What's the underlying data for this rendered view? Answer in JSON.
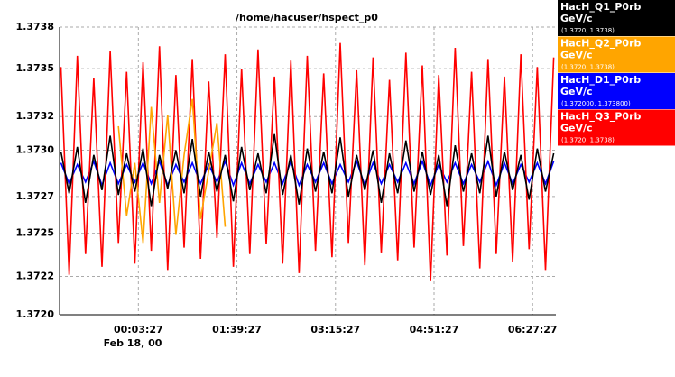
{
  "chart_data": {
    "type": "line",
    "title": "/home/hacuser/hspect_p0",
    "x_date_label": "Feb 18, 00",
    "x": [
      -72,
      -64,
      -56,
      -48,
      -40,
      -32,
      -24,
      -16,
      -8,
      0,
      8,
      16,
      24,
      32,
      40,
      48,
      56,
      64,
      72,
      80,
      88,
      96,
      104,
      112,
      120,
      128,
      136,
      144,
      152,
      160,
      168,
      176,
      184,
      192,
      200,
      208,
      216,
      224,
      232,
      240,
      248,
      256,
      264,
      272,
      280,
      288,
      296,
      304,
      312,
      320,
      328,
      336,
      344,
      352,
      360,
      368,
      376,
      384,
      392,
      400,
      408
    ],
    "xlim": [
      -73.3,
      410.1
    ],
    "xticks": [
      {
        "value": 3.45,
        "label": "00:03:27"
      },
      {
        "value": 99.45,
        "label": "01:39:27"
      },
      {
        "value": 195.45,
        "label": "03:15:27"
      },
      {
        "value": 291.45,
        "label": "04:51:27"
      },
      {
        "value": 387.45,
        "label": "06:27:27"
      }
    ],
    "ylim": [
      1.372,
      1.3738
    ],
    "yticks": [
      {
        "value": 1.372,
        "label": "1.3720"
      },
      {
        "value": 1.37224,
        "label": "1.3722"
      },
      {
        "value": 1.37251,
        "label": "1.3725"
      },
      {
        "value": 1.37274,
        "label": "1.3727"
      },
      {
        "value": 1.37303,
        "label": "1.3730"
      },
      {
        "value": 1.37324,
        "label": "1.3732"
      },
      {
        "value": 1.37354,
        "label": "1.3735"
      },
      {
        "value": 1.3738,
        "label": "1.3738"
      }
    ],
    "grid": true,
    "series": [
      {
        "name": "HacH_Q1_P0rb",
        "unit": "GeV/c",
        "range_label": "(1.3720, 1.3738)",
        "color": "#000000",
        "values": [
          1.37302,
          1.37276,
          1.37305,
          1.3727,
          1.373,
          1.37278,
          1.37312,
          1.37275,
          1.37301,
          1.37277,
          1.37304,
          1.37268,
          1.373,
          1.37279,
          1.37303,
          1.37276,
          1.3731,
          1.37274,
          1.37302,
          1.37277,
          1.373,
          1.37271,
          1.37305,
          1.37278,
          1.37301,
          1.37276,
          1.37313,
          1.37275,
          1.373,
          1.37269,
          1.37304,
          1.37277,
          1.37302,
          1.37276,
          1.37311,
          1.37274,
          1.373,
          1.37278,
          1.37303,
          1.3727,
          1.37301,
          1.37276,
          1.37309,
          1.37277,
          1.37302,
          1.37275,
          1.373,
          1.37268,
          1.37306,
          1.37277,
          1.37301,
          1.37276,
          1.37312,
          1.37274,
          1.37302,
          1.37278,
          1.373,
          1.37272,
          1.37304,
          1.37277,
          1.37301
        ]
      },
      {
        "name": "HacH_Q2_P0rb",
        "unit": "GeV/c",
        "range_label": "(1.3720, 1.3738)",
        "color": "#ffa500",
        "values": [
          null,
          null,
          null,
          null,
          null,
          null,
          null,
          1.37318,
          1.37262,
          1.37295,
          1.37245,
          1.3733,
          1.3727,
          1.37325,
          1.3725,
          1.373,
          1.37335,
          1.3726,
          1.3729,
          1.3732,
          1.37255,
          null,
          null,
          null,
          null,
          null,
          null,
          null,
          null,
          null,
          null,
          null,
          null,
          null,
          null,
          null,
          null,
          null,
          null,
          null,
          null,
          null,
          null,
          null,
          null,
          null,
          null,
          null,
          null,
          null,
          null,
          null,
          null,
          null,
          null,
          null,
          null,
          null,
          null,
          null,
          null
        ]
      },
      {
        "name": "HacH_D1_P0rb",
        "unit": "GeV/c",
        "range_label": "(1.372000, 1.373800)",
        "color": "#0000ff",
        "values": [
          1.37295,
          1.37282,
          1.37294,
          1.37283,
          1.37296,
          1.37281,
          1.37295,
          1.37282,
          1.37294,
          1.37283,
          1.37295,
          1.37282,
          1.37296,
          1.37281,
          1.37294,
          1.37283,
          1.37295,
          1.37282,
          1.37294,
          1.37283,
          1.37296,
          1.37281,
          1.37295,
          1.37282,
          1.37294,
          1.37283,
          1.37295,
          1.37282,
          1.37296,
          1.37281,
          1.37294,
          1.37283,
          1.37295,
          1.37282,
          1.37294,
          1.37283,
          1.37296,
          1.37281,
          1.37295,
          1.37282,
          1.37294,
          1.37283,
          1.37295,
          1.37282,
          1.37296,
          1.37281,
          1.37294,
          1.37283,
          1.37295,
          1.37282,
          1.37294,
          1.37283,
          1.37296,
          1.37281,
          1.37295,
          1.37282,
          1.37294,
          1.37283,
          1.37295,
          1.37282,
          1.37296
        ]
      },
      {
        "name": "HacH_Q3_P0rb",
        "unit": "GeV/c",
        "range_label": "(1.3720, 1.3738)",
        "color": "#ff0000",
        "values": [
          1.37355,
          1.37225,
          1.37362,
          1.37238,
          1.37348,
          1.3723,
          1.37365,
          1.37245,
          1.37352,
          1.37232,
          1.37358,
          1.3724,
          1.37368,
          1.37228,
          1.3735,
          1.37242,
          1.3736,
          1.37235,
          1.37346,
          1.37248,
          1.37363,
          1.3723,
          1.37354,
          1.37238,
          1.37366,
          1.37244,
          1.37349,
          1.37232,
          1.37359,
          1.37226,
          1.37362,
          1.3724,
          1.37351,
          1.37236,
          1.3737,
          1.37245,
          1.37353,
          1.37231,
          1.37361,
          1.37239,
          1.37347,
          1.37234,
          1.37364,
          1.37242,
          1.37356,
          1.37221,
          1.3735,
          1.37237,
          1.37367,
          1.37243,
          1.37352,
          1.37229,
          1.3736,
          1.37238,
          1.37349,
          1.37233,
          1.37363,
          1.37241,
          1.37355,
          1.37228,
          1.37361
        ]
      }
    ]
  }
}
